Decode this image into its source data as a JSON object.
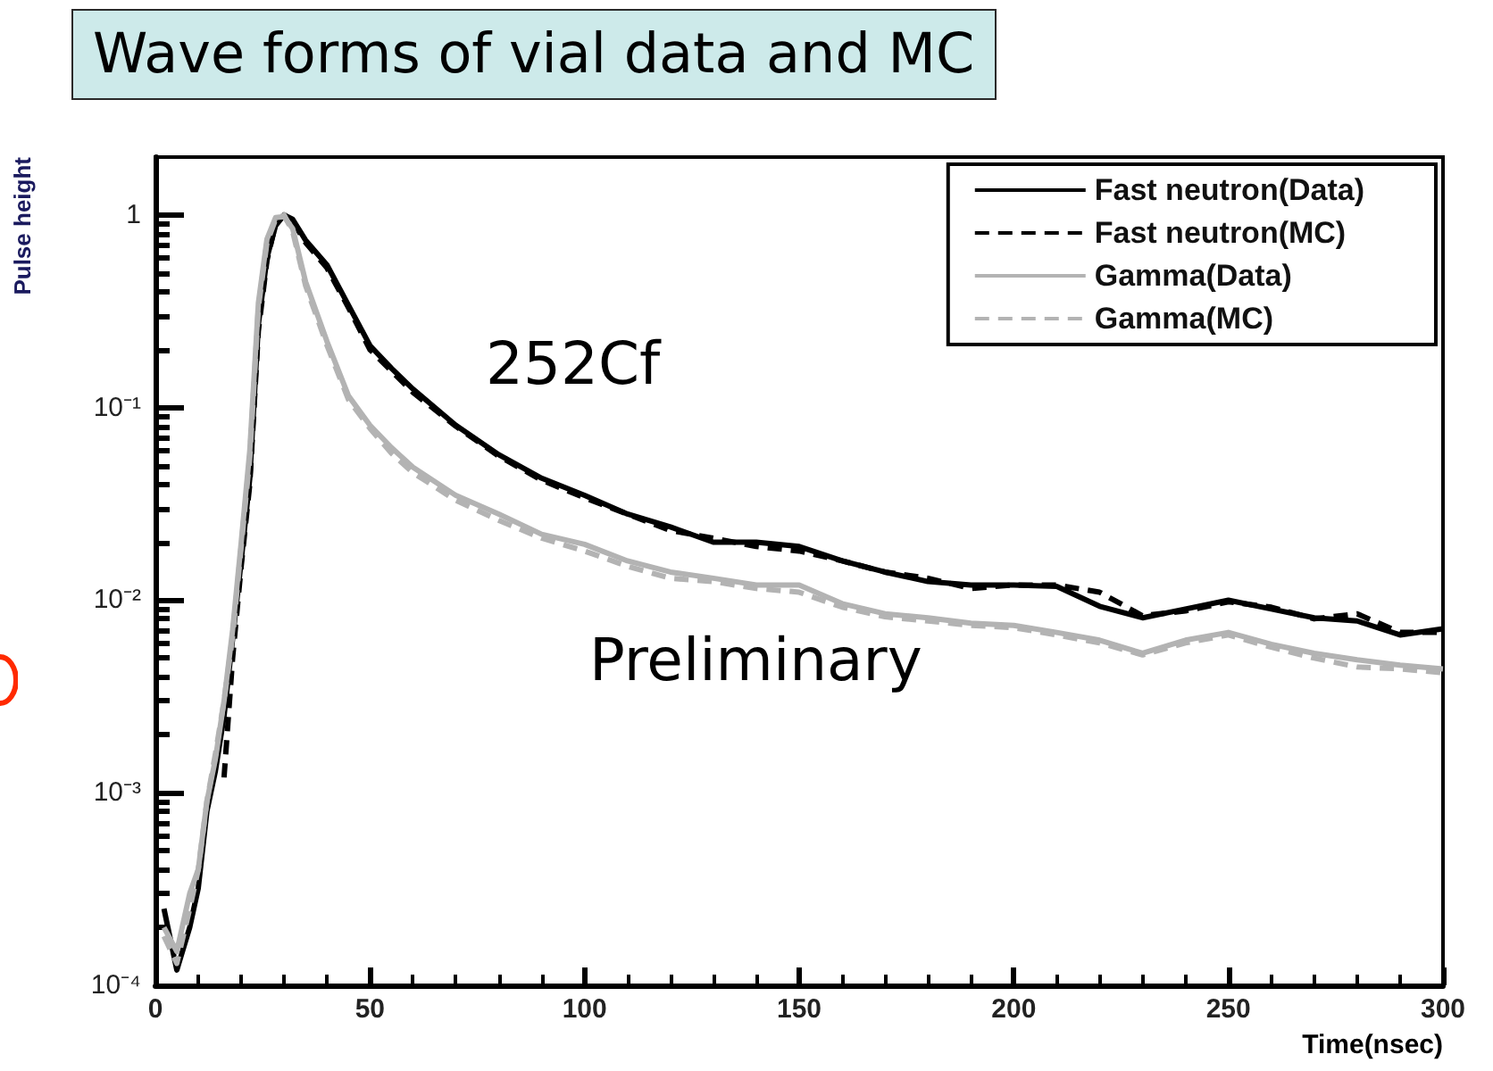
{
  "chart_data": {
    "type": "line",
    "title": "Wave forms of vial data and MC",
    "xlabel": "Time(nsec)",
    "ylabel": "Pulse height",
    "annotations": [
      "252Cf",
      "Preliminary"
    ],
    "x": [
      2,
      5,
      8,
      10,
      12,
      14,
      16,
      18,
      20,
      22,
      24,
      26,
      28,
      30,
      32,
      35,
      40,
      45,
      50,
      55,
      60,
      70,
      80,
      90,
      100,
      110,
      120,
      130,
      140,
      150,
      160,
      170,
      180,
      190,
      200,
      210,
      220,
      230,
      240,
      250,
      260,
      270,
      280,
      290,
      300
    ],
    "series": [
      {
        "name": "Fast neutron(Data)",
        "color": "#000000",
        "line_style": "solid",
        "values": [
          0.00025,
          0.00012,
          0.0002,
          0.00032,
          0.0008,
          0.0013,
          0.0025,
          0.0063,
          0.016,
          0.043,
          0.27,
          0.6,
          0.88,
          1.0,
          0.95,
          0.74,
          0.55,
          0.34,
          0.21,
          0.16,
          0.125,
          0.081,
          0.057,
          0.043,
          0.035,
          0.028,
          0.024,
          0.02,
          0.02,
          0.019,
          0.016,
          0.014,
          0.0125,
          0.012,
          0.012,
          0.0118,
          0.0093,
          0.0081,
          0.009,
          0.01,
          0.009,
          0.0081,
          0.0078,
          0.0066,
          0.0071
        ]
      },
      {
        "name": "Fast neutron(MC)",
        "color": "#000000",
        "line_style": "dashed",
        "values": [
          null,
          null,
          null,
          null,
          null,
          null,
          0.0012,
          0.005,
          0.015,
          0.04,
          0.25,
          0.58,
          0.9,
          1.0,
          0.93,
          0.72,
          0.53,
          0.33,
          0.2,
          0.155,
          0.12,
          0.08,
          0.056,
          0.042,
          0.034,
          0.028,
          0.023,
          0.021,
          0.019,
          0.018,
          0.016,
          0.014,
          0.013,
          0.0115,
          0.012,
          0.012,
          0.011,
          0.0083,
          0.0088,
          0.0098,
          0.0092,
          0.008,
          0.0085,
          0.0068,
          0.0068
        ]
      },
      {
        "name": "Gamma(Data)",
        "color": "#b3b3b3",
        "line_style": "solid",
        "values": [
          0.0002,
          0.00015,
          0.0003,
          0.0004,
          0.0009,
          0.0015,
          0.003,
          0.007,
          0.02,
          0.06,
          0.35,
          0.75,
          0.97,
          0.98,
          0.85,
          0.45,
          0.22,
          0.115,
          0.081,
          0.062,
          0.049,
          0.035,
          0.028,
          0.022,
          0.0195,
          0.016,
          0.014,
          0.013,
          0.012,
          0.012,
          0.0096,
          0.0085,
          0.0081,
          0.0076,
          0.0074,
          0.0068,
          0.0062,
          0.0053,
          0.0062,
          0.0068,
          0.0059,
          0.0053,
          0.0049,
          0.0046,
          0.0044
        ]
      },
      {
        "name": "Gamma(MC)",
        "color": "#b3b3b3",
        "line_style": "dashed",
        "values": [
          0.00018,
          0.00013,
          0.00025,
          0.0004,
          0.0009,
          0.0016,
          0.003,
          0.0065,
          0.019,
          0.055,
          0.33,
          0.72,
          0.95,
          1.0,
          0.82,
          0.43,
          0.21,
          0.11,
          0.078,
          0.058,
          0.046,
          0.033,
          0.026,
          0.021,
          0.018,
          0.015,
          0.013,
          0.0125,
          0.0115,
          0.011,
          0.0092,
          0.0082,
          0.0078,
          0.0074,
          0.0072,
          0.0066,
          0.006,
          0.0052,
          0.006,
          0.0066,
          0.0057,
          0.005,
          0.0045,
          0.0044,
          0.0042
        ]
      }
    ],
    "log": "y",
    "xlim": [
      0,
      300
    ],
    "xticks": [
      0,
      50,
      100,
      150,
      200,
      250,
      300
    ],
    "ylim": [
      0.0001,
      2
    ],
    "yticks": [
      {
        "value": 0.0001,
        "label": "10⁻⁴"
      },
      {
        "value": 0.001,
        "label": "10⁻³"
      },
      {
        "value": 0.01,
        "label": "10⁻²"
      },
      {
        "value": 0.1,
        "label": "10⁻¹"
      },
      1
    ],
    "grid": false,
    "legend": "top right",
    "marker": "none"
  }
}
